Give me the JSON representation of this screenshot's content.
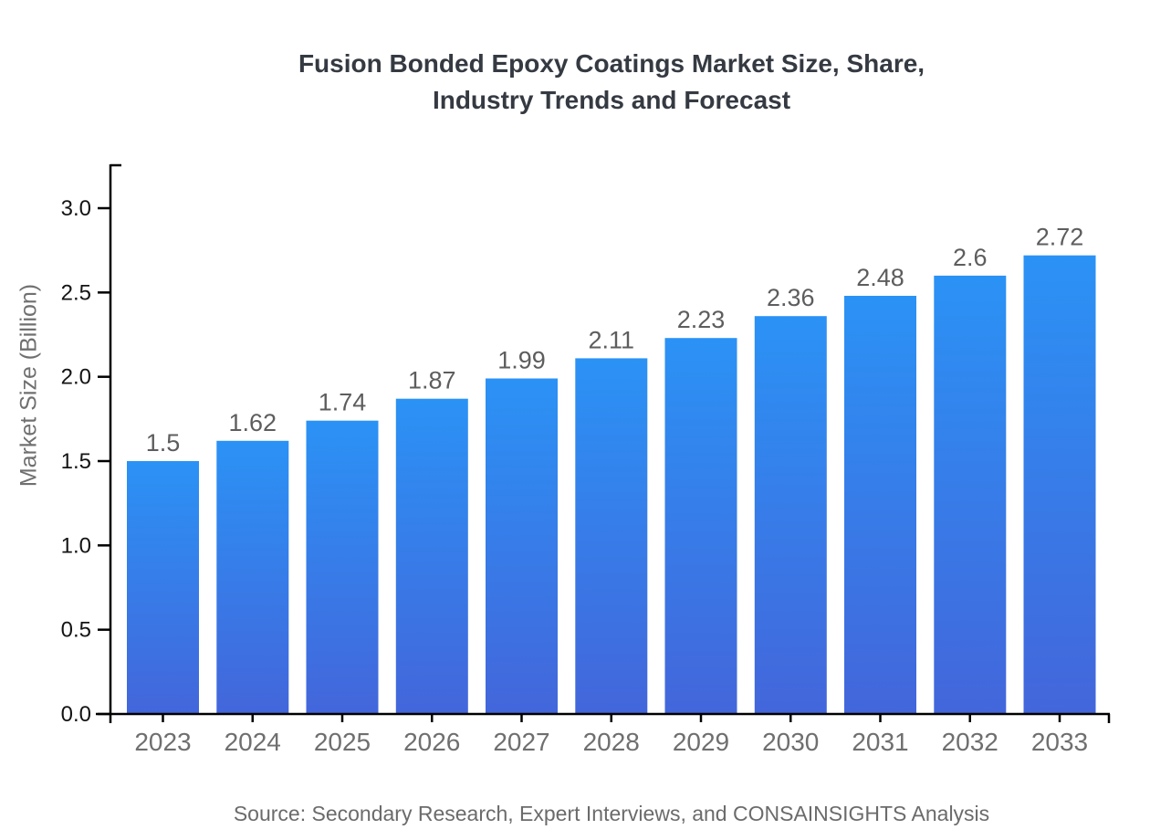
{
  "header": {
    "title_line1": "Fusion Bonded Epoxy Coatings Market Size, Share,",
    "title_line2": "Industry Trends and Forecast"
  },
  "footer": {
    "source_text": "Source: Secondary Research, Expert Interviews, and CONSAINSIGHTS Analysis"
  },
  "chart_data": {
    "type": "bar",
    "title": "Fusion Bonded Epoxy Coatings Market Size, Share, Industry Trends and Forecast",
    "categories": [
      "2023",
      "2024",
      "2025",
      "2026",
      "2027",
      "2028",
      "2029",
      "2030",
      "2031",
      "2032",
      "2033"
    ],
    "values": [
      1.5,
      1.62,
      1.74,
      1.87,
      1.99,
      2.11,
      2.23,
      2.36,
      2.48,
      2.6,
      2.72
    ],
    "value_labels": [
      "1.5",
      "1.62",
      "1.74",
      "1.87",
      "1.99",
      "2.11",
      "2.23",
      "2.36",
      "2.48",
      "2.6",
      "2.72"
    ],
    "xlabel": "",
    "ylabel": "Market Size (Billion)",
    "ylim": [
      0,
      3.26
    ],
    "yticks": [
      0,
      0.5,
      1,
      1.5,
      2,
      2.5,
      3
    ],
    "ytick_labels": [
      "0.0",
      "0.5",
      "1.0",
      "1.5",
      "2.0",
      "2.5",
      "3.0"
    ],
    "grid": false,
    "legend": "none",
    "colors": {
      "bar_gradient_top": "#2B92F5",
      "bar_gradient_bottom": "#4366DB",
      "axis": "#000000",
      "ytick_label": "#141414",
      "xtick_label": "#6f6f6f",
      "value_label": "#5d5d5d",
      "title": "#353a42",
      "source": "#6b6b6b"
    }
  }
}
